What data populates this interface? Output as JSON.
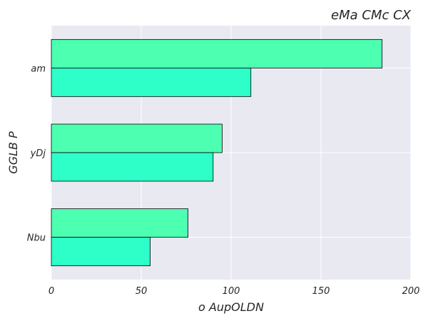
{
  "chart_data": {
    "type": "bar",
    "orientation": "horizontal",
    "title": "eMa CMc CX",
    "xlabel": "o AupOLDN",
    "ylabel": "GGLB P",
    "categories": [
      "am",
      "yDj",
      "Nbu"
    ],
    "series": [
      {
        "values": [
          184,
          95,
          76
        ],
        "color": "#4dffb1"
      },
      {
        "values": [
          111,
          90,
          55
        ],
        "color": "#2effc9"
      }
    ],
    "xlim": [
      0,
      200
    ],
    "xticks": [
      0,
      50,
      100,
      150,
      200
    ],
    "grid": true,
    "background": "#e9e9f2"
  }
}
